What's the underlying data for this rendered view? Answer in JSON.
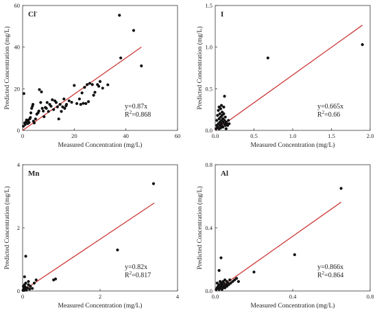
{
  "chart_data": [
    {
      "type": "scatter",
      "title": "Cl",
      "title_sup": "-",
      "xlabel": "Measured Concentration (mg/L)",
      "ylabel": "Predicted Concentration (mg/L)",
      "xlim": [
        0,
        60
      ],
      "ylim": [
        0,
        60
      ],
      "xticks": [
        0,
        20,
        40,
        60
      ],
      "yticks": [
        0,
        20,
        40,
        60
      ],
      "tick_labels_x": [
        "0",
        "20",
        "40",
        "60"
      ],
      "tick_labels_y": [
        "0",
        "20",
        "40",
        "60"
      ],
      "fit_slope": 0.87,
      "fit_x_range": [
        0,
        46
      ],
      "equation": "y=0.87x",
      "r2_prefix": "R",
      "r2_sup": "2",
      "r2_value": "=0.868",
      "points": [
        [
          0.3,
          2
        ],
        [
          0.5,
          17.7
        ],
        [
          0.8,
          3.6
        ],
        [
          1,
          2.8
        ],
        [
          1.3,
          4
        ],
        [
          1.5,
          5
        ],
        [
          1.8,
          4.4
        ],
        [
          2,
          3.3
        ],
        [
          2.2,
          4.9
        ],
        [
          2.5,
          3.8
        ],
        [
          2.8,
          5.6
        ],
        [
          3,
          6.2
        ],
        [
          3.2,
          8.4
        ],
        [
          3.5,
          10.6
        ],
        [
          3.8,
          11.6
        ],
        [
          4,
          12.5
        ],
        [
          4.2,
          4.4
        ],
        [
          4.5,
          3.6
        ],
        [
          5,
          5.5
        ],
        [
          5.5,
          7.8
        ],
        [
          6,
          8.5
        ],
        [
          6.3,
          9.3
        ],
        [
          6.5,
          19.6
        ],
        [
          7,
          13.4
        ],
        [
          7.3,
          18.5
        ],
        [
          7.6,
          10.6
        ],
        [
          8,
          9.3
        ],
        [
          8.3,
          6.6
        ],
        [
          8.8,
          11
        ],
        [
          9.2,
          10.6
        ],
        [
          9.5,
          13.4
        ],
        [
          10,
          9.1
        ],
        [
          10.5,
          12.5
        ],
        [
          11,
          11.6
        ],
        [
          11.5,
          14.7
        ],
        [
          12,
          10
        ],
        [
          12.5,
          14.2
        ],
        [
          13,
          13.4
        ],
        [
          13.5,
          11.3
        ],
        [
          14,
          5.5
        ],
        [
          14.5,
          12.5
        ],
        [
          15,
          9.1
        ],
        [
          15.5,
          11.3
        ],
        [
          16,
          15.1
        ],
        [
          16.3,
          10.6
        ],
        [
          16.8,
          11.8
        ],
        [
          17,
          12.5
        ],
        [
          18,
          14.2
        ],
        [
          19,
          13.5
        ],
        [
          20,
          21.6
        ],
        [
          21,
          12.9
        ],
        [
          22,
          15.1
        ],
        [
          22.5,
          12.5
        ],
        [
          23,
          18
        ],
        [
          23.5,
          13
        ],
        [
          24,
          20.7
        ],
        [
          24.5,
          12.9
        ],
        [
          25,
          22
        ],
        [
          25.5,
          13.8
        ],
        [
          26,
          22.6
        ],
        [
          27,
          22
        ],
        [
          27.5,
          16.9
        ],
        [
          28,
          18.3
        ],
        [
          29,
          22
        ],
        [
          29.5,
          21.2
        ],
        [
          30,
          23.5
        ],
        [
          31,
          20.3
        ],
        [
          33,
          21.9
        ],
        [
          37.5,
          55.3
        ],
        [
          38,
          34.8
        ],
        [
          43,
          48
        ],
        [
          46,
          31
        ]
      ]
    },
    {
      "type": "scatter",
      "title": "I",
      "xlabel": "Measured Concentration (mg/L)",
      "ylabel": "Predicted Concentration (mg/L)",
      "xlim": [
        0,
        2.0
      ],
      "ylim": [
        0,
        1.5
      ],
      "xticks": [
        0,
        0.5,
        1.0,
        1.5,
        2.0
      ],
      "yticks": [
        0,
        0.5,
        1.0,
        1.5
      ],
      "tick_labels_x": [
        "0.0",
        "0.5",
        "1.0",
        "1.5",
        "2.0"
      ],
      "tick_labels_y": [
        "0.0",
        "0.5",
        "1.0",
        "1.5"
      ],
      "fit_slope": 0.665,
      "fit_x_range": [
        0,
        1.9
      ],
      "equation": "y=0.665x",
      "r2_prefix": "R",
      "r2_sup": "2",
      "r2_value": "=0.66",
      "points": [
        [
          0.01,
          0.02
        ],
        [
          0.02,
          0.06
        ],
        [
          0.02,
          0.12
        ],
        [
          0.03,
          0.04
        ],
        [
          0.03,
          0.18
        ],
        [
          0.04,
          0.08
        ],
        [
          0.04,
          0.24
        ],
        [
          0.05,
          0.02
        ],
        [
          0.05,
          0.14
        ],
        [
          0.05,
          0.28
        ],
        [
          0.06,
          0.06
        ],
        [
          0.06,
          0.1
        ],
        [
          0.06,
          0.2
        ],
        [
          0.07,
          0.03
        ],
        [
          0.07,
          0.16
        ],
        [
          0.07,
          0.26
        ],
        [
          0.08,
          0.08
        ],
        [
          0.08,
          0.12
        ],
        [
          0.08,
          0.3
        ],
        [
          0.09,
          0.05
        ],
        [
          0.09,
          0.18
        ],
        [
          0.09,
          0.22
        ],
        [
          0.1,
          0.1
        ],
        [
          0.1,
          0.14
        ],
        [
          0.1,
          0.04
        ],
        [
          0.11,
          0.2
        ],
        [
          0.11,
          0.28
        ],
        [
          0.12,
          0.08
        ],
        [
          0.12,
          0.12
        ],
        [
          0.12,
          0.41
        ],
        [
          0.13,
          0.06
        ],
        [
          0.13,
          0.16
        ],
        [
          0.14,
          0.1
        ],
        [
          0.14,
          0.02
        ],
        [
          0.15,
          0.08
        ],
        [
          0.16,
          0.06
        ],
        [
          0.17,
          0.12
        ],
        [
          0.18,
          0.08
        ],
        [
          0.68,
          0.87
        ],
        [
          1.9,
          1.03
        ]
      ]
    },
    {
      "type": "scatter",
      "title": "Mn",
      "xlabel": "Measured Concentration (mg/L)",
      "ylabel": "Predicted Concentration (mg/L)",
      "xlim": [
        0,
        4
      ],
      "ylim": [
        0,
        4
      ],
      "xticks": [
        0,
        2,
        4
      ],
      "yticks": [
        0,
        2,
        4
      ],
      "tick_labels_x": [
        "0",
        "2",
        "4"
      ],
      "tick_labels_y": [
        "0",
        "2",
        "4"
      ],
      "fit_slope": 0.82,
      "fit_x_range": [
        0,
        3.4
      ],
      "equation": "y=0.82x",
      "r2_prefix": "R",
      "r2_sup": "2",
      "r2_value": "=0.817",
      "points": [
        [
          0.01,
          0.02
        ],
        [
          0.02,
          0.15
        ],
        [
          0.03,
          0.08
        ],
        [
          0.04,
          0.02
        ],
        [
          0.05,
          0.2
        ],
        [
          0.05,
          0.45
        ],
        [
          0.06,
          0.05
        ],
        [
          0.07,
          0.12
        ],
        [
          0.08,
          0.25
        ],
        [
          0.08,
          1.1
        ],
        [
          0.1,
          0.03
        ],
        [
          0.12,
          0.1
        ],
        [
          0.15,
          0.2
        ],
        [
          0.15,
          0.3
        ],
        [
          0.18,
          0.06
        ],
        [
          0.2,
          0.15
        ],
        [
          0.25,
          0.08
        ],
        [
          0.3,
          0.25
        ],
        [
          0.35,
          0.35
        ],
        [
          0.8,
          0.35
        ],
        [
          0.85,
          0.38
        ],
        [
          2.45,
          1.3
        ],
        [
          3.38,
          3.4
        ]
      ]
    },
    {
      "type": "scatter",
      "title": "Al",
      "xlabel": "Measured Concentration (mg/L)",
      "ylabel": "Predicted Concentration (mg/L)",
      "xlim": [
        0,
        0.8
      ],
      "ylim": [
        0,
        0.8
      ],
      "xticks": [
        0,
        0.4,
        0.8
      ],
      "yticks": [
        0,
        0.4,
        0.8
      ],
      "tick_labels_x": [
        "0.0",
        "0.4",
        "0.8"
      ],
      "tick_labels_y": [
        "0.0",
        "0.4",
        "0.8"
      ],
      "fit_slope": 0.866,
      "fit_x_range": [
        0,
        0.65
      ],
      "equation": "y=0.866x",
      "r2_prefix": "R",
      "r2_sup": "2",
      "r2_value": "=0.864",
      "points": [
        [
          0.005,
          0.01
        ],
        [
          0.01,
          0.02
        ],
        [
          0.01,
          0.05
        ],
        [
          0.015,
          0.03
        ],
        [
          0.02,
          0.01
        ],
        [
          0.02,
          0.04
        ],
        [
          0.025,
          0.02
        ],
        [
          0.025,
          0.06
        ],
        [
          0.03,
          0.03
        ],
        [
          0.03,
          0.05
        ],
        [
          0.035,
          0.01
        ],
        [
          0.035,
          0.04
        ],
        [
          0.04,
          0.02
        ],
        [
          0.04,
          0.06
        ],
        [
          0.045,
          0.03
        ],
        [
          0.045,
          0.05
        ],
        [
          0.05,
          0.02
        ],
        [
          0.05,
          0.07
        ],
        [
          0.055,
          0.04
        ],
        [
          0.06,
          0.03
        ],
        [
          0.06,
          0.06
        ],
        [
          0.065,
          0.05
        ],
        [
          0.07,
          0.04
        ],
        [
          0.075,
          0.07
        ],
        [
          0.08,
          0.05
        ],
        [
          0.09,
          0.06
        ],
        [
          0.1,
          0.07
        ],
        [
          0.11,
          0.08
        ],
        [
          0.12,
          0.06
        ],
        [
          0.02,
          0.13
        ],
        [
          0.03,
          0.21
        ],
        [
          0.2,
          0.12
        ],
        [
          0.41,
          0.23
        ],
        [
          0.65,
          0.65
        ]
      ]
    }
  ],
  "colors": {
    "points": "#111111",
    "fit_line": "#cc3333",
    "axis": "#333333"
  }
}
